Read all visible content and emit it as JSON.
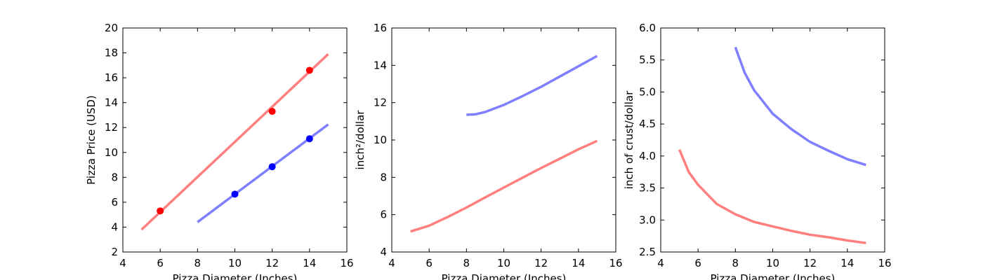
{
  "chart_data": [
    {
      "type": "line",
      "xlabel": "Pizza Diameter (Inches)",
      "ylabel": "Pizza Price (USD)",
      "xlim": [
        4,
        16
      ],
      "ylim": [
        2,
        20
      ],
      "xticks": [
        4,
        6,
        8,
        10,
        12,
        14,
        16
      ],
      "yticks": [
        2,
        4,
        6,
        8,
        10,
        12,
        14,
        16,
        18,
        20
      ],
      "series": [
        {
          "color": "#ff7f7f",
          "curve": "linear",
          "x_range": [
            5,
            15
          ],
          "values_at_ends": [
            3.8,
            17.9
          ]
        },
        {
          "color": "#7f7fff",
          "curve": "linear",
          "x_range": [
            8,
            15
          ],
          "values_at_ends": [
            4.4,
            12.25
          ]
        }
      ],
      "points": [
        {
          "color": "#ff0000",
          "x": [
            6,
            12,
            14
          ],
          "y": [
            5.3,
            13.3,
            16.6
          ]
        },
        {
          "color": "#0000ff",
          "x": [
            10,
            12,
            14
          ],
          "y": [
            6.65,
            8.85,
            11.1
          ]
        }
      ]
    },
    {
      "type": "line",
      "xlabel": "Pizza Diameter (Inches)",
      "ylabel": "inch²/dollar",
      "xlim": [
        4,
        16
      ],
      "ylim": [
        4,
        16
      ],
      "xticks": [
        4,
        6,
        8,
        10,
        12,
        14,
        16
      ],
      "yticks": [
        4,
        6,
        8,
        10,
        12,
        14,
        16
      ],
      "series": [
        {
          "color": "#ff7f7f",
          "x": [
            5,
            6,
            7,
            8,
            9,
            10,
            11,
            12,
            13,
            14,
            15
          ],
          "values": [
            5.1,
            5.41,
            5.88,
            6.38,
            6.92,
            7.45,
            7.98,
            8.5,
            9.0,
            9.5,
            9.95
          ]
        },
        {
          "color": "#7f7fff",
          "x": [
            8,
            8.5,
            9,
            10,
            11,
            12,
            13,
            14,
            15
          ],
          "values": [
            11.35,
            11.38,
            11.5,
            11.88,
            12.35,
            12.85,
            13.4,
            13.95,
            14.5
          ]
        }
      ]
    },
    {
      "type": "line",
      "xlabel": "Pizza Diameter (Inches)",
      "ylabel": "inch of crust/dollar",
      "xlim": [
        4,
        16
      ],
      "ylim": [
        2.5,
        6.0
      ],
      "xticks": [
        4,
        6,
        8,
        10,
        12,
        14,
        16
      ],
      "yticks": [
        2.5,
        3.0,
        3.5,
        4.0,
        4.5,
        5.0,
        5.5,
        6.0
      ],
      "ytick_labels": [
        "2.5",
        "3.0",
        "3.5",
        "4.0",
        "4.5",
        "5.0",
        "5.5",
        "6.0"
      ],
      "series": [
        {
          "color": "#ff7f7f",
          "x": [
            5,
            5.5,
            6,
            7,
            8,
            9,
            10,
            11,
            12,
            13,
            14,
            15
          ],
          "values": [
            4.1,
            3.75,
            3.55,
            3.25,
            3.09,
            2.97,
            2.9,
            2.83,
            2.77,
            2.73,
            2.68,
            2.64
          ]
        },
        {
          "color": "#7f7fff",
          "x": [
            8,
            8.5,
            9,
            10,
            11,
            12,
            13,
            14,
            15
          ],
          "values": [
            5.7,
            5.3,
            5.03,
            4.66,
            4.42,
            4.22,
            4.08,
            3.95,
            3.86
          ]
        }
      ]
    }
  ]
}
